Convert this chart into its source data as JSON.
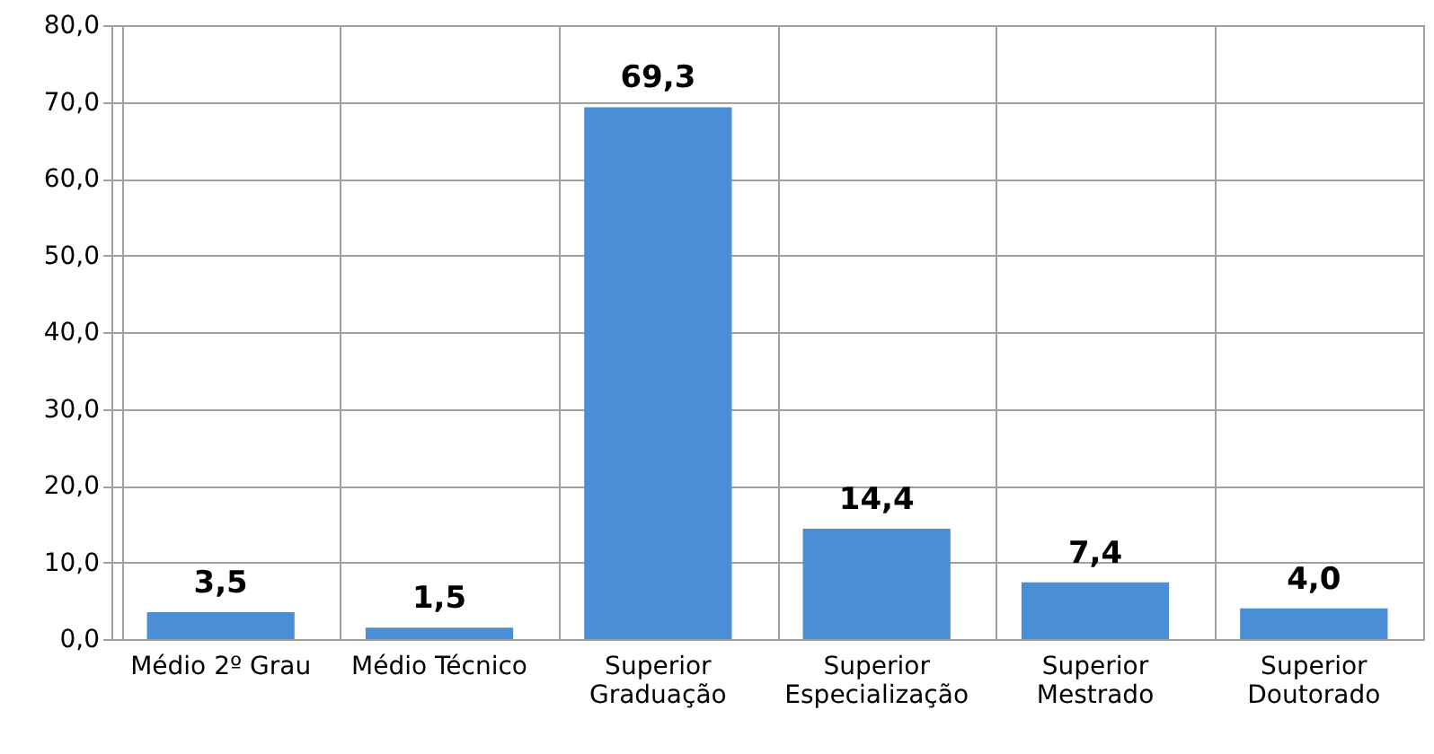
{
  "chart_data": {
    "type": "bar",
    "categories": [
      "Médio 2º Grau",
      "Médio Técnico",
      "Superior Graduação",
      "Superior Especialização",
      "Superior Mestrado",
      "Superior Doutorado"
    ],
    "values": [
      3.5,
      1.5,
      69.3,
      14.4,
      7.4,
      4.0
    ],
    "value_labels": [
      "3,5",
      "1,5",
      "69,3",
      "14,4",
      "7,4",
      "4,0"
    ],
    "color": "#4a8fd6",
    "ylim": [
      0,
      80
    ],
    "yticks": [
      {
        "value": 0,
        "label": "0,0"
      },
      {
        "value": 10,
        "label": "10,0"
      },
      {
        "value": 20,
        "label": "20,0"
      },
      {
        "value": 30,
        "label": "30,0"
      },
      {
        "value": 40,
        "label": "40,0"
      },
      {
        "value": 50,
        "label": "50,0"
      },
      {
        "value": 60,
        "label": "60,0"
      },
      {
        "value": 70,
        "label": "70,0"
      },
      {
        "value": 80,
        "label": "80,0"
      }
    ],
    "grid": true
  }
}
